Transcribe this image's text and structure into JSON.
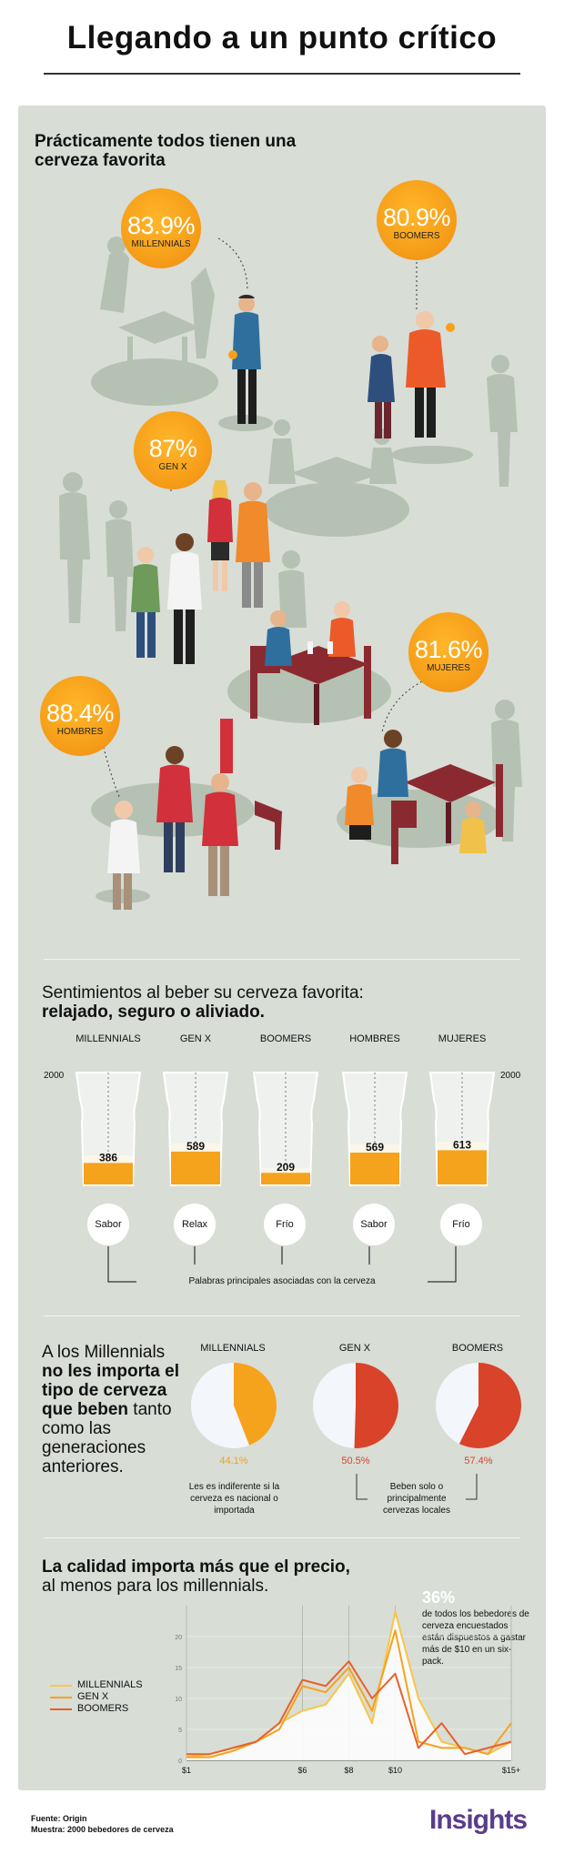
{
  "title": "Llegando a un punto crítico",
  "section1": {
    "title": "Prácticamente todos tienen una cerveza favorita",
    "bubbles": [
      {
        "pct": "83.9%",
        "label": "MILLENNIALS"
      },
      {
        "pct": "80.9%",
        "label": "BOOMERS"
      },
      {
        "pct": "87%",
        "label": "GEN X"
      },
      {
        "pct": "81.6%",
        "label": "MUJERES"
      },
      {
        "pct": "88.4%",
        "label": "HOMBRES"
      }
    ]
  },
  "section2": {
    "title_line1": "Sentimientos al beber su cerveza favorita:",
    "title_line2": "relajado, seguro o aliviado.",
    "scale_max_label": "2000",
    "scale_max": 2000,
    "groups": [
      {
        "label": "MILLENNIALS",
        "value": 386,
        "value_label": "386",
        "word": "Sabor"
      },
      {
        "label": "GEN X",
        "value": 589,
        "value_label": "589",
        "word": "Relax"
      },
      {
        "label": "BOOMERS",
        "value": 209,
        "value_label": "209",
        "word": "Frío"
      },
      {
        "label": "HOMBRES",
        "value": 569,
        "value_label": "569",
        "word": "Sabor"
      },
      {
        "label": "MUJERES",
        "value": 613,
        "value_label": "613",
        "word": "Frío"
      }
    ],
    "words_caption": "Palabras principales asociadas con la cerveza"
  },
  "section3": {
    "text_plain1": "A los Millennials ",
    "text_bold": "no les importa el tipo de cerveza que beben",
    "text_plain2": " tanto como las generaciones anteriores.",
    "pies": [
      {
        "label": "MILLENNIALS",
        "pct_value": 44.1,
        "pct_label": "44.1%",
        "color": "#f5a21d"
      },
      {
        "label": "GEN X",
        "pct_value": 50.5,
        "pct_label": "50.5%",
        "color": "#d9432a"
      },
      {
        "label": "BOOMERS",
        "pct_value": 57.4,
        "pct_label": "57.4%",
        "color": "#d9432a"
      }
    ],
    "note_left": "Les es indiferente si la cerveza es nacional o importada",
    "note_right": "Beben solo o principalmente cervezas locales"
  },
  "section4": {
    "title_line1": "La calidad importa más que el precio,",
    "title_line2": "al menos para los millennials.",
    "callout_pct": "36%",
    "callout_text": "de todos los bebedores de cerveza encuestados están dispuestos a gastar más de $10 en un six-pack.",
    "chart_data": {
      "type": "line",
      "x_tick_labels": [
        "$1",
        "$6",
        "$8",
        "$10",
        "$15+"
      ],
      "y_ticks": [
        0,
        5,
        10,
        15,
        20
      ],
      "ylim": [
        0,
        25
      ],
      "legend_position": "left",
      "series": [
        {
          "name": "MILLENNIALS",
          "color": "#f7c64a",
          "values": [
            0.5,
            1,
            2,
            3,
            6,
            8,
            9,
            14,
            6,
            24,
            10,
            3,
            2,
            1,
            3
          ]
        },
        {
          "name": "GEN X",
          "color": "#f5a21d",
          "values": [
            0.5,
            0.5,
            1.5,
            3,
            5,
            12,
            11,
            15,
            8,
            21,
            3,
            2,
            2,
            1,
            6
          ]
        },
        {
          "name": "BOOMERS",
          "color": "#e8602a",
          "values": [
            1,
            1,
            2,
            3,
            6,
            13,
            12,
            16,
            10,
            14,
            2,
            6,
            1,
            2,
            3
          ]
        }
      ]
    }
  },
  "footer": {
    "source": "Fuente: Origin",
    "sample": "Muestra: 2000 bebedores de cerveza"
  },
  "brand": "Insights"
}
